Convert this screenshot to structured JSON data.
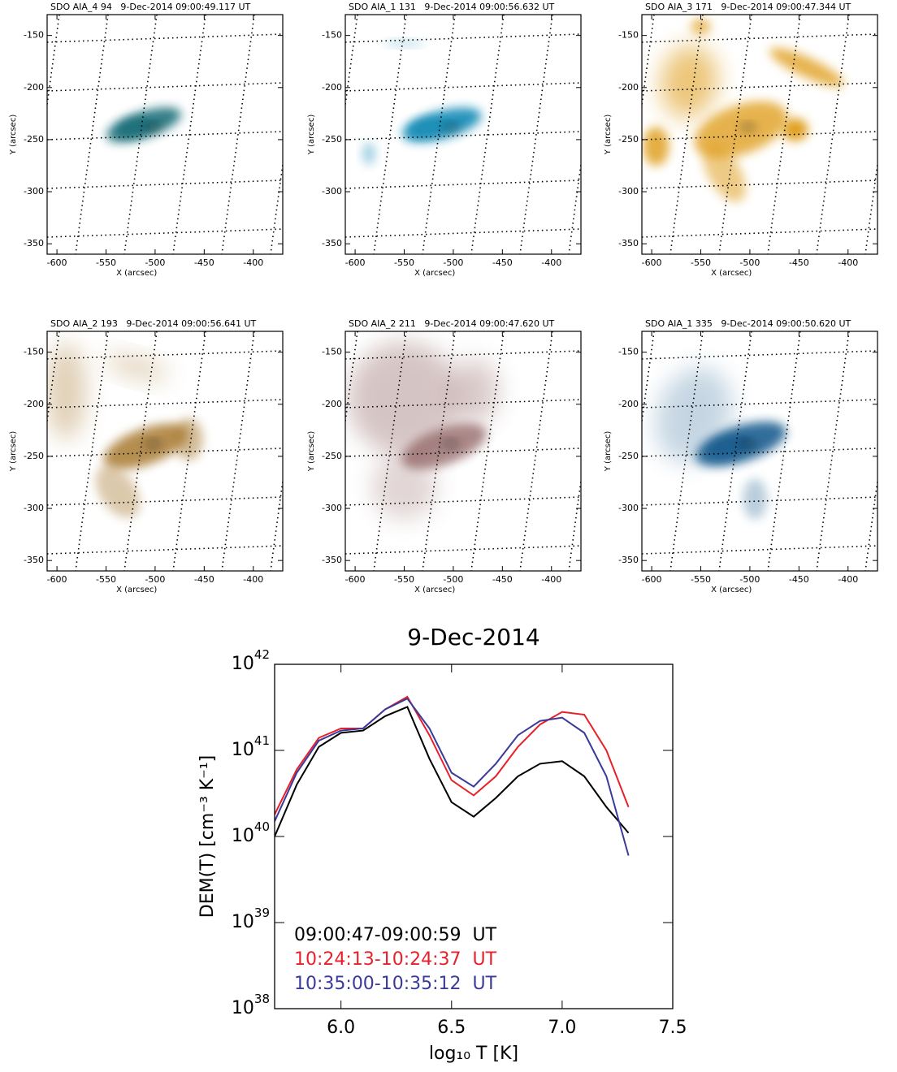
{
  "chart_data": [
    {
      "type": "image",
      "title": "SDO AIA_4 94   9-Dec-2014 09:00:49.117 UT",
      "xlabel": "X (arcsec)",
      "ylabel": "Y (arcsec)",
      "color": "#1f6f7a",
      "xlim": [
        -610,
        -370
      ],
      "ylim": [
        -360,
        -130
      ],
      "xticks": [
        -600,
        -550,
        -500,
        -450,
        -400
      ],
      "yticks": [
        -150,
        -200,
        -250,
        -300,
        -350
      ]
    },
    {
      "type": "image",
      "title": "SDO AIA_1 131   9-Dec-2014 09:00:56.632 UT",
      "xlabel": "X (arcsec)",
      "ylabel": "Y (arcsec)",
      "color": "#1a8fb8",
      "xlim": [
        -610,
        -370
      ],
      "ylim": [
        -360,
        -130
      ],
      "xticks": [
        -600,
        -550,
        -500,
        -450,
        -400
      ],
      "yticks": [
        -150,
        -200,
        -250,
        -300,
        -350
      ]
    },
    {
      "type": "image",
      "title": "SDO AIA_3 171   9-Dec-2014 09:00:47.344 UT",
      "xlabel": "X (arcsec)",
      "ylabel": "Y (arcsec)",
      "color": "#e0a020",
      "xlim": [
        -610,
        -370
      ],
      "ylim": [
        -360,
        -130
      ],
      "xticks": [
        -600,
        -550,
        -500,
        -450,
        -400
      ],
      "yticks": [
        -150,
        -200,
        -250,
        -300,
        -350
      ]
    },
    {
      "type": "image",
      "title": "SDO AIA_2 193   9-Dec-2014 09:00:56.641 UT",
      "xlabel": "X (arcsec)",
      "ylabel": "Y (arcsec)",
      "color": "#a87a30",
      "xlim": [
        -610,
        -370
      ],
      "ylim": [
        -360,
        -130
      ],
      "xticks": [
        -600,
        -550,
        -500,
        -450,
        -400
      ],
      "yticks": [
        -150,
        -200,
        -250,
        -300,
        -350
      ]
    },
    {
      "type": "image",
      "title": "SDO AIA_2 211   9-Dec-2014 09:00:47.620 UT",
      "xlabel": "X (arcsec)",
      "ylabel": "Y (arcsec)",
      "color": "#8a5a5a",
      "xlim": [
        -610,
        -370
      ],
      "ylim": [
        -360,
        -130
      ],
      "xticks": [
        -600,
        -550,
        -500,
        -450,
        -400
      ],
      "yticks": [
        -150,
        -200,
        -250,
        -300,
        -350
      ]
    },
    {
      "type": "image",
      "title": "SDO AIA_1 335   9-Dec-2014 09:00:50.620 UT",
      "xlabel": "X (arcsec)",
      "ylabel": "Y (arcsec)",
      "color": "#1f5f90",
      "xlim": [
        -610,
        -370
      ],
      "ylim": [
        -360,
        -130
      ],
      "xticks": [
        -600,
        -550,
        -500,
        -450,
        -400
      ],
      "yticks": [
        -150,
        -200,
        -250,
        -300,
        -350
      ]
    },
    {
      "type": "line",
      "title": "9-Dec-2014",
      "xlabel": "log₁₀ T [K]",
      "ylabel": "DEM(T)  [cm⁻³ K⁻¹]",
      "log_y": true,
      "legend": "lower left",
      "x": [
        5.7,
        5.8,
        5.9,
        6.0,
        6.1,
        6.2,
        6.3,
        6.4,
        6.5,
        6.6,
        6.7,
        6.8,
        6.9,
        7.0,
        7.1,
        7.2,
        7.3
      ],
      "series": [
        {
          "name": "09:00:47-09:00:59  UT",
          "color": "#000000",
          "values": [
            1e+40,
            4e+40,
            1.1e+41,
            1.6e+41,
            1.7e+41,
            2.5e+41,
            3.2e+41,
            8e+40,
            2.5e+40,
            1.7e+40,
            2.8e+40,
            5e+40,
            7e+40,
            7.5e+40,
            5e+40,
            2.2e+40,
            1.1e+40
          ]
        },
        {
          "name": "10:24:13-10:24:37  UT",
          "color": "#e8202a",
          "values": [
            1.8e+40,
            6e+40,
            1.4e+41,
            1.8e+41,
            1.8e+41,
            3e+41,
            4.2e+41,
            1.5e+41,
            4.5e+40,
            3e+40,
            5e+40,
            1.1e+41,
            2e+41,
            2.8e+41,
            2.6e+41,
            1e+41,
            2.2e+40
          ]
        },
        {
          "name": "10:35:00-10:35:12  UT",
          "color": "#3a3a9a",
          "values": [
            1.5e+40,
            5.5e+40,
            1.3e+41,
            1.7e+41,
            1.8e+41,
            3e+41,
            4e+41,
            1.8e+41,
            5.5e+40,
            3.8e+40,
            7e+40,
            1.5e+41,
            2.2e+41,
            2.4e+41,
            1.6e+41,
            5e+40,
            6e+39
          ]
        }
      ],
      "xlim": [
        5.7,
        7.5
      ],
      "xticks": [
        {
          "value": 6,
          "label": "6.0"
        },
        6.5,
        {
          "value": 7,
          "label": "7.0"
        },
        7.5
      ],
      "ylim": [
        1e+38,
        1e+42
      ],
      "yticks": [
        {
          "value": 1e+38,
          "label": "10",
          "exponent": "38"
        },
        {
          "value": 1e+39,
          "label": "10",
          "exponent": "39"
        },
        {
          "value": 1e+40,
          "label": "10",
          "exponent": "40"
        },
        {
          "value": 1e+41,
          "label": "10",
          "exponent": "41"
        },
        {
          "value": 1e+42,
          "label": "10",
          "exponent": "42"
        }
      ]
    }
  ]
}
